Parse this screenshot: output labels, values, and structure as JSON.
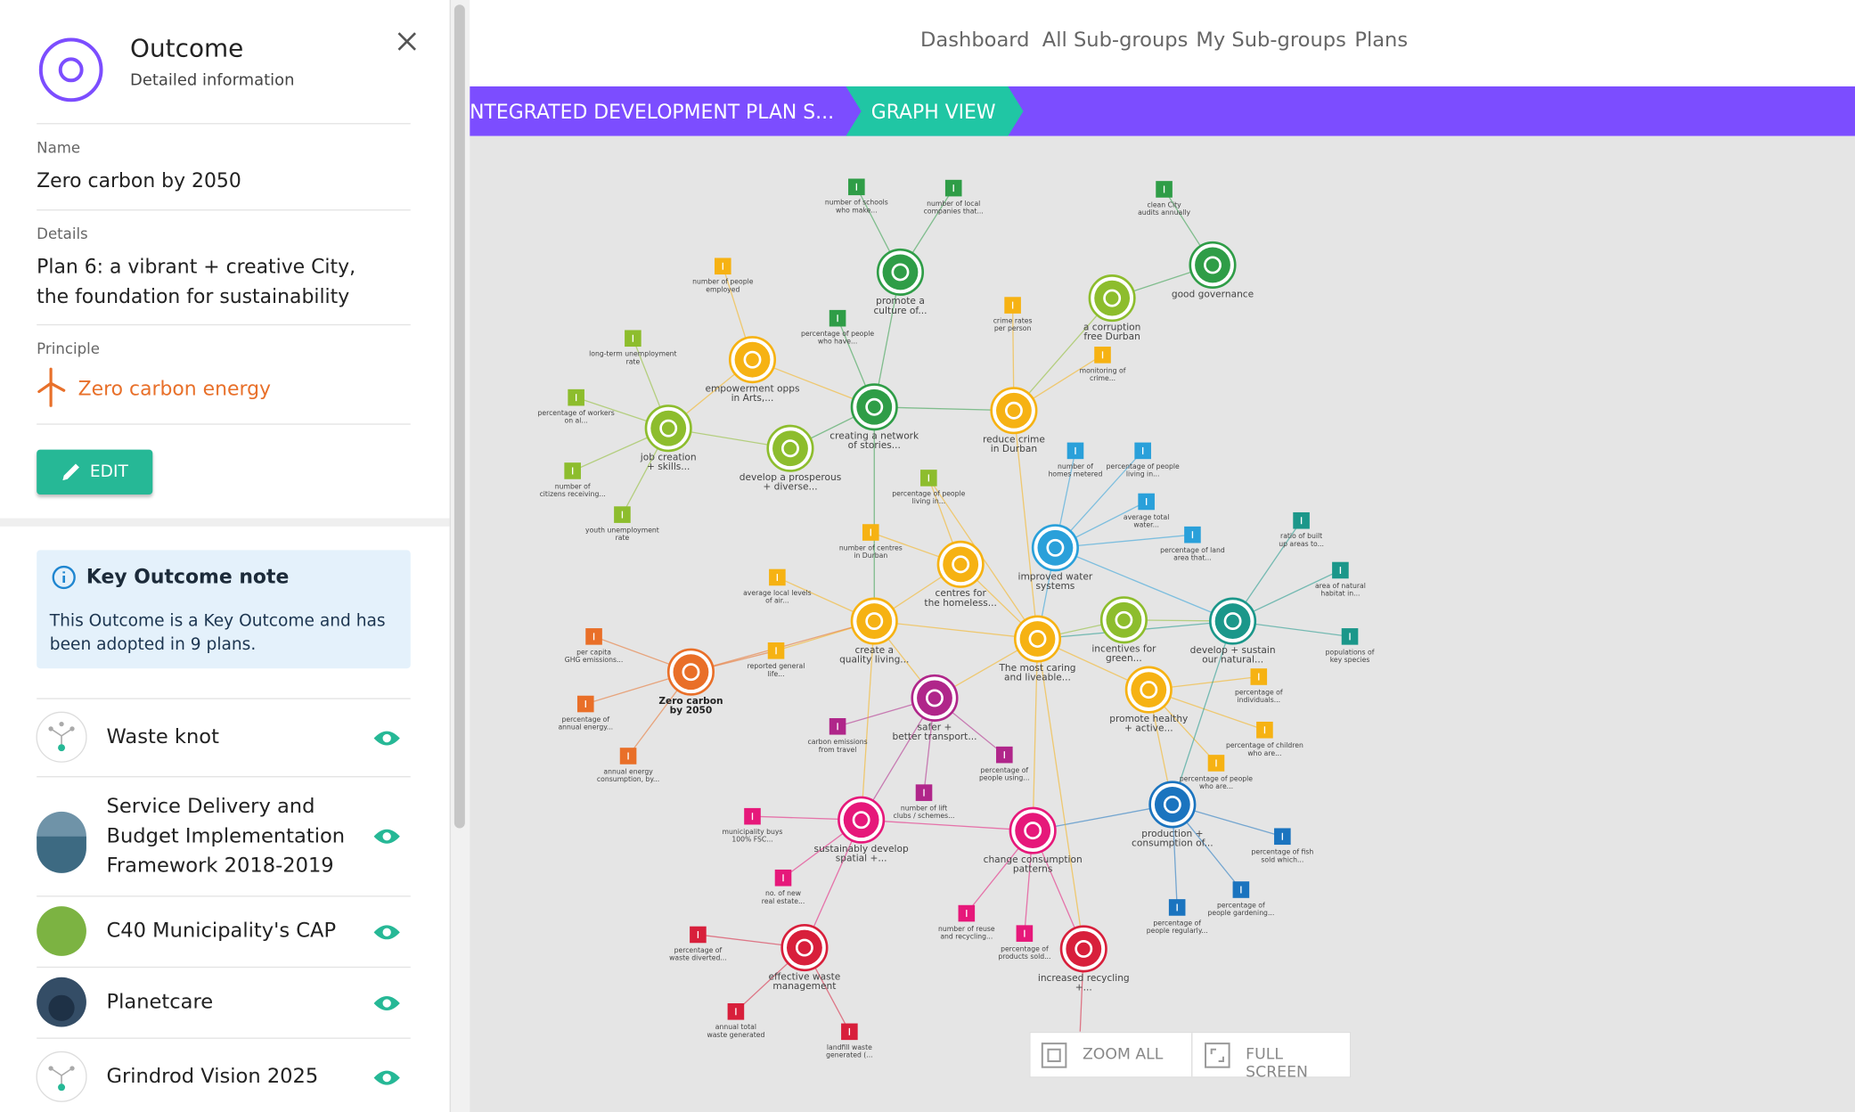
{
  "panel": {
    "title": "Outcome",
    "subtitle": "Detailed information",
    "fields": [
      {
        "label": "Name",
        "value": "Zero carbon by 2050"
      },
      {
        "label": "Details",
        "value": "Plan 6: a vibrant + creative City, the foundation for sustainability"
      },
      {
        "label": "Principle",
        "value": "Zero carbon energy"
      }
    ],
    "edit_button": "EDIT",
    "note": {
      "title": "Key Outcome note",
      "text": "This Outcome is a Key Outcome and has been adopted in 9 plans."
    },
    "plans": [
      {
        "name": "Waste knot"
      },
      {
        "name": "Service Delivery and Budget Implementation Framework 2018-2019"
      },
      {
        "name": "C40 Municipality's CAP"
      },
      {
        "name": "Planetcare"
      },
      {
        "name": "Grindrod Vision 2025"
      }
    ]
  },
  "nav": [
    "Dashboard",
    "All Sub-groups",
    "My Sub-groups",
    "Plans"
  ],
  "breadcrumb": [
    "NTEGRATED DEVELOPMENT PLAN S...",
    "GRAPH VIEW"
  ],
  "graph": {
    "nodes": [
      {
        "label": [
          "promote a",
          "culture of..."
        ]
      },
      {
        "label": [
          "good governance"
        ]
      },
      {
        "label": [
          "a corruption",
          "free Durban"
        ]
      },
      {
        "label": [
          "empowerment opps",
          "in Arts,..."
        ]
      },
      {
        "label": [
          "creating a network",
          "of stories..."
        ]
      },
      {
        "label": [
          "reduce crime",
          "in Durban"
        ]
      },
      {
        "label": [
          "job creation",
          "+ skills..."
        ]
      },
      {
        "label": [
          "develop a prosperous",
          "+ diverse..."
        ]
      },
      {
        "label": [
          "improved water",
          "systems"
        ]
      },
      {
        "label": [
          "centres for",
          "the homeless..."
        ]
      },
      {
        "label": [
          "create a",
          "quality living..."
        ]
      },
      {
        "label": [
          "incentives for",
          "green..."
        ]
      },
      {
        "label": [
          "develop + sustain",
          "our natural..."
        ]
      },
      {
        "label": [
          "The most caring",
          "and liveable..."
        ]
      },
      {
        "label": [
          "Zero carbon",
          "by 2050"
        ]
      },
      {
        "label": [
          "promote healthy",
          "+ active..."
        ]
      },
      {
        "label": [
          "safer +",
          "better transport..."
        ]
      },
      {
        "label": [
          "production +",
          "consumption of..."
        ]
      },
      {
        "label": [
          "sustainably develop",
          "spatial +..."
        ]
      },
      {
        "label": [
          "change consumption",
          "patterns"
        ]
      },
      {
        "label": [
          "effective waste",
          "management"
        ]
      },
      {
        "label": [
          "increased recycling",
          "+..."
        ]
      },
      {
        "label": [
          "number of schools",
          "who make..."
        ]
      },
      {
        "label": [
          "number of local",
          "companies that..."
        ]
      },
      {
        "label": [
          "clean City",
          "audits annually"
        ]
      },
      {
        "label": [
          "number of people",
          "employed"
        ]
      },
      {
        "label": [
          "percentage of people",
          "who have..."
        ]
      },
      {
        "label": [
          "crime rates",
          "per person"
        ]
      },
      {
        "label": [
          "long-term unemployment",
          "rate"
        ]
      },
      {
        "label": [
          "monitoring of",
          "crime..."
        ]
      },
      {
        "label": [
          "percentage of workers",
          "on al..."
        ]
      },
      {
        "label": [
          "number of",
          "homes metered"
        ]
      },
      {
        "label": [
          "percentage of people",
          "living in..."
        ]
      },
      {
        "label": [
          "percentage of people",
          "living in..."
        ]
      },
      {
        "label": [
          "number of",
          "citizens receiving..."
        ]
      },
      {
        "label": [
          "average total",
          "water..."
        ]
      },
      {
        "label": [
          "youth unemployment",
          "rate"
        ]
      },
      {
        "label": [
          "number of centres",
          "in Durban"
        ]
      },
      {
        "label": [
          "percentage of land",
          "area that..."
        ]
      },
      {
        "label": [
          "ratio of built",
          "up areas to..."
        ]
      },
      {
        "label": [
          "area of natural",
          "habitat in..."
        ]
      },
      {
        "label": [
          "average local levels",
          "of air..."
        ]
      },
      {
        "label": [
          "per capita",
          "GHG emissions..."
        ]
      },
      {
        "label": [
          "populations of",
          "key species"
        ]
      },
      {
        "label": [
          "reported general",
          "life..."
        ]
      },
      {
        "label": [
          "percentage of",
          "individuals..."
        ]
      },
      {
        "label": [
          "percentage of",
          "annual energy..."
        ]
      },
      {
        "label": [
          "carbon emissions",
          "from travel"
        ]
      },
      {
        "label": [
          "percentage of children",
          "who are..."
        ]
      },
      {
        "label": [
          "annual energy",
          "consumption, by..."
        ]
      },
      {
        "label": [
          "percentage of",
          "people using..."
        ]
      },
      {
        "label": [
          "percentage of people",
          "who are..."
        ]
      },
      {
        "label": [
          "number of lift",
          "clubs / schemes..."
        ]
      },
      {
        "label": [
          "municipality buys",
          "100% FSC..."
        ]
      },
      {
        "label": [
          "percentage of fish",
          "sold which..."
        ]
      },
      {
        "label": [
          "no. of new",
          "real estate..."
        ]
      },
      {
        "label": [
          "percentage of",
          "people gardening..."
        ]
      },
      {
        "label": [
          "percentage of",
          "people regularly..."
        ]
      },
      {
        "label": [
          "number of reuse",
          "and recycling..."
        ]
      },
      {
        "label": [
          "percentage of",
          "products sold..."
        ]
      },
      {
        "label": [
          "percentage of",
          "waste diverted..."
        ]
      },
      {
        "label": [
          "annual total",
          "waste generated"
        ]
      },
      {
        "label": [
          "landfill waste",
          "generated (..."
        ]
      }
    ]
  },
  "controls": [
    "ZOOM ALL",
    "FULL SCREEN"
  ]
}
